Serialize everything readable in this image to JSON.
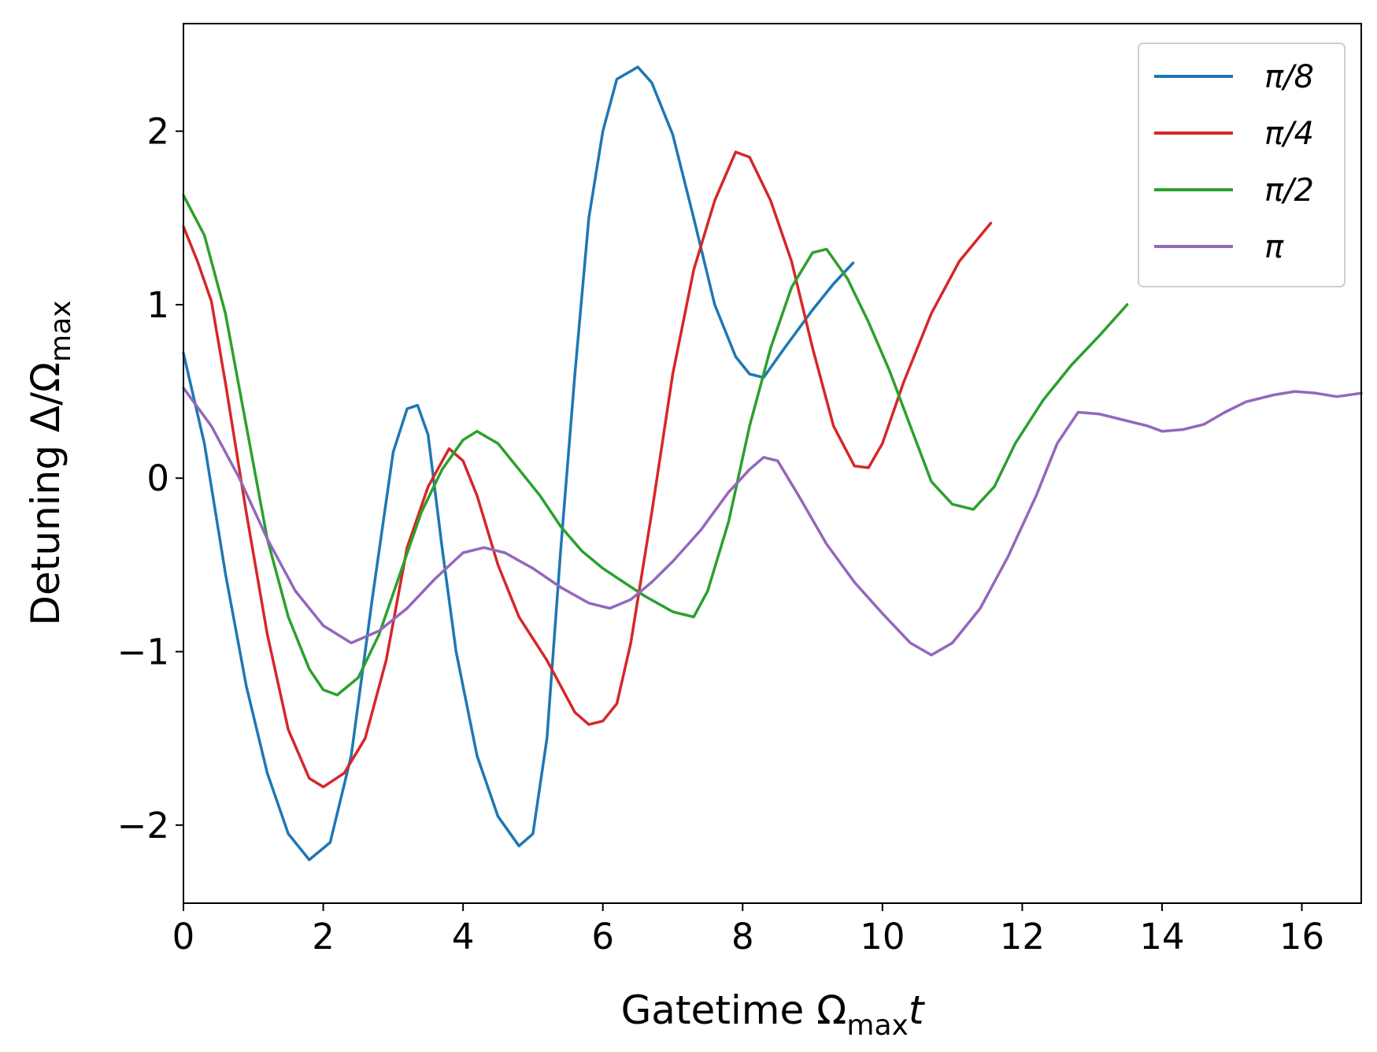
{
  "chart_data": {
    "type": "line",
    "xlabel": {
      "prefix": "Gatetime Ω",
      "sub": "max",
      "suffix": "t"
    },
    "ylabel": {
      "prefix": "Detuning Δ/Ω",
      "sub": "max"
    },
    "xlim": [
      0,
      16.85
    ],
    "ylim": [
      -2.45,
      2.62
    ],
    "xticks": [
      0,
      2,
      4,
      6,
      8,
      10,
      12,
      14,
      16
    ],
    "yticks": [
      -2,
      -1,
      0,
      1,
      2
    ],
    "ytick_labels": [
      "−2",
      "−1",
      "0",
      "1",
      "2"
    ],
    "grid": false,
    "legend_position": "top-right",
    "series": [
      {
        "name": "π/8",
        "color": "#1f77b4",
        "points": [
          [
            0,
            0.72
          ],
          [
            0.3,
            0.2
          ],
          [
            0.6,
            -0.55
          ],
          [
            0.9,
            -1.2
          ],
          [
            1.2,
            -1.7
          ],
          [
            1.5,
            -2.05
          ],
          [
            1.8,
            -2.2
          ],
          [
            2.1,
            -2.1
          ],
          [
            2.4,
            -1.6
          ],
          [
            2.7,
            -0.7
          ],
          [
            3.0,
            0.15
          ],
          [
            3.2,
            0.4
          ],
          [
            3.35,
            0.42
          ],
          [
            3.5,
            0.25
          ],
          [
            3.7,
            -0.4
          ],
          [
            3.9,
            -1.0
          ],
          [
            4.2,
            -1.6
          ],
          [
            4.5,
            -1.95
          ],
          [
            4.8,
            -2.12
          ],
          [
            5.0,
            -2.05
          ],
          [
            5.2,
            -1.5
          ],
          [
            5.4,
            -0.4
          ],
          [
            5.6,
            0.6
          ],
          [
            5.8,
            1.5
          ],
          [
            6.0,
            2.0
          ],
          [
            6.2,
            2.3
          ],
          [
            6.5,
            2.37
          ],
          [
            6.7,
            2.28
          ],
          [
            7.0,
            1.98
          ],
          [
            7.3,
            1.5
          ],
          [
            7.6,
            1.0
          ],
          [
            7.9,
            0.7
          ],
          [
            8.1,
            0.6
          ],
          [
            8.3,
            0.58
          ],
          [
            8.6,
            0.75
          ],
          [
            9.0,
            0.97
          ],
          [
            9.3,
            1.12
          ],
          [
            9.58,
            1.24
          ]
        ]
      },
      {
        "name": "π/4",
        "color": "#d62728",
        "points": [
          [
            0,
            1.45
          ],
          [
            0.2,
            1.25
          ],
          [
            0.4,
            1.02
          ],
          [
            0.6,
            0.55
          ],
          [
            0.9,
            -0.2
          ],
          [
            1.2,
            -0.9
          ],
          [
            1.5,
            -1.45
          ],
          [
            1.8,
            -1.73
          ],
          [
            2.0,
            -1.78
          ],
          [
            2.3,
            -1.7
          ],
          [
            2.6,
            -1.5
          ],
          [
            2.9,
            -1.05
          ],
          [
            3.2,
            -0.4
          ],
          [
            3.5,
            -0.05
          ],
          [
            3.8,
            0.17
          ],
          [
            4.0,
            0.1
          ],
          [
            4.2,
            -0.1
          ],
          [
            4.5,
            -0.5
          ],
          [
            4.8,
            -0.8
          ],
          [
            5.2,
            -1.05
          ],
          [
            5.6,
            -1.35
          ],
          [
            5.8,
            -1.42
          ],
          [
            6.0,
            -1.4
          ],
          [
            6.2,
            -1.3
          ],
          [
            6.4,
            -0.95
          ],
          [
            6.7,
            -0.2
          ],
          [
            7.0,
            0.6
          ],
          [
            7.3,
            1.2
          ],
          [
            7.6,
            1.6
          ],
          [
            7.9,
            1.88
          ],
          [
            8.1,
            1.85
          ],
          [
            8.4,
            1.6
          ],
          [
            8.7,
            1.25
          ],
          [
            9.0,
            0.75
          ],
          [
            9.3,
            0.3
          ],
          [
            9.6,
            0.07
          ],
          [
            9.8,
            0.06
          ],
          [
            10.0,
            0.2
          ],
          [
            10.3,
            0.55
          ],
          [
            10.7,
            0.95
          ],
          [
            11.1,
            1.25
          ],
          [
            11.55,
            1.47
          ]
        ]
      },
      {
        "name": "π/2",
        "color": "#2ca02c",
        "points": [
          [
            0,
            1.63
          ],
          [
            0.3,
            1.4
          ],
          [
            0.6,
            0.95
          ],
          [
            0.9,
            0.3
          ],
          [
            1.2,
            -0.35
          ],
          [
            1.5,
            -0.8
          ],
          [
            1.8,
            -1.1
          ],
          [
            2.0,
            -1.22
          ],
          [
            2.2,
            -1.25
          ],
          [
            2.5,
            -1.15
          ],
          [
            2.8,
            -0.9
          ],
          [
            3.1,
            -0.55
          ],
          [
            3.4,
            -0.2
          ],
          [
            3.7,
            0.05
          ],
          [
            4.0,
            0.22
          ],
          [
            4.2,
            0.27
          ],
          [
            4.5,
            0.2
          ],
          [
            4.8,
            0.05
          ],
          [
            5.1,
            -0.1
          ],
          [
            5.4,
            -0.28
          ],
          [
            5.7,
            -0.42
          ],
          [
            6.0,
            -0.52
          ],
          [
            6.3,
            -0.6
          ],
          [
            6.6,
            -0.68
          ],
          [
            7.0,
            -0.77
          ],
          [
            7.3,
            -0.8
          ],
          [
            7.5,
            -0.65
          ],
          [
            7.8,
            -0.25
          ],
          [
            8.1,
            0.3
          ],
          [
            8.4,
            0.75
          ],
          [
            8.7,
            1.1
          ],
          [
            9.0,
            1.3
          ],
          [
            9.2,
            1.32
          ],
          [
            9.5,
            1.15
          ],
          [
            9.8,
            0.9
          ],
          [
            10.1,
            0.62
          ],
          [
            10.4,
            0.3
          ],
          [
            10.7,
            -0.02
          ],
          [
            11.0,
            -0.15
          ],
          [
            11.3,
            -0.18
          ],
          [
            11.6,
            -0.05
          ],
          [
            11.9,
            0.2
          ],
          [
            12.3,
            0.45
          ],
          [
            12.7,
            0.65
          ],
          [
            13.1,
            0.82
          ],
          [
            13.5,
            1.0
          ]
        ]
      },
      {
        "name": "π",
        "color": "#9467bd",
        "points": [
          [
            0,
            0.52
          ],
          [
            0.4,
            0.3
          ],
          [
            0.8,
            0.0
          ],
          [
            1.2,
            -0.35
          ],
          [
            1.6,
            -0.65
          ],
          [
            2.0,
            -0.85
          ],
          [
            2.4,
            -0.95
          ],
          [
            2.8,
            -0.88
          ],
          [
            3.2,
            -0.75
          ],
          [
            3.6,
            -0.58
          ],
          [
            4.0,
            -0.43
          ],
          [
            4.3,
            -0.4
          ],
          [
            4.6,
            -0.43
          ],
          [
            5.0,
            -0.52
          ],
          [
            5.4,
            -0.63
          ],
          [
            5.8,
            -0.72
          ],
          [
            6.1,
            -0.75
          ],
          [
            6.4,
            -0.7
          ],
          [
            6.7,
            -0.6
          ],
          [
            7.0,
            -0.48
          ],
          [
            7.4,
            -0.3
          ],
          [
            7.8,
            -0.08
          ],
          [
            8.1,
            0.05
          ],
          [
            8.3,
            0.12
          ],
          [
            8.5,
            0.1
          ],
          [
            8.8,
            -0.1
          ],
          [
            9.2,
            -0.38
          ],
          [
            9.6,
            -0.6
          ],
          [
            10.0,
            -0.78
          ],
          [
            10.4,
            -0.95
          ],
          [
            10.7,
            -1.02
          ],
          [
            11.0,
            -0.95
          ],
          [
            11.4,
            -0.75
          ],
          [
            11.8,
            -0.45
          ],
          [
            12.2,
            -0.1
          ],
          [
            12.5,
            0.2
          ],
          [
            12.8,
            0.38
          ],
          [
            13.1,
            0.37
          ],
          [
            13.5,
            0.33
          ],
          [
            13.8,
            0.3
          ],
          [
            14.0,
            0.27
          ],
          [
            14.3,
            0.28
          ],
          [
            14.6,
            0.31
          ],
          [
            14.9,
            0.38
          ],
          [
            15.2,
            0.44
          ],
          [
            15.6,
            0.48
          ],
          [
            15.9,
            0.5
          ],
          [
            16.2,
            0.49
          ],
          [
            16.5,
            0.47
          ],
          [
            16.85,
            0.49
          ]
        ]
      }
    ]
  }
}
